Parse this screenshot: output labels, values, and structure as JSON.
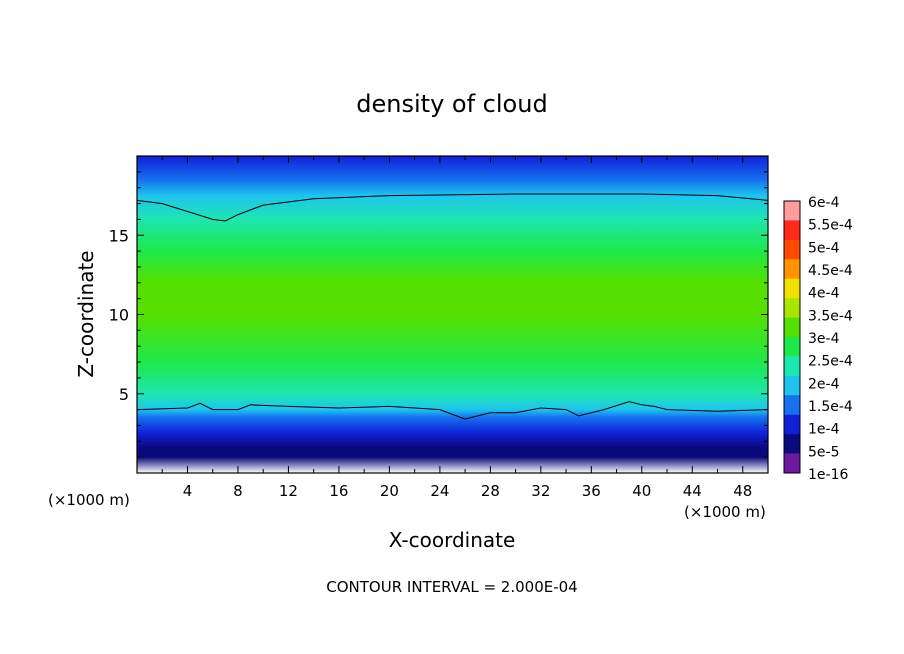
{
  "chart_data": {
    "type": "heatmap",
    "title": "density of cloud",
    "xlabel": "X-coordinate",
    "ylabel": "Z-coordinate",
    "x_unit": "(×1000 m)",
    "x_unit_right": "(×1000 m)",
    "footer": "CONTOUR INTERVAL = 2.000E-04",
    "xlim": [
      0,
      50
    ],
    "ylim": [
      0,
      20
    ],
    "x_ticks": [
      4,
      8,
      12,
      16,
      20,
      24,
      28,
      32,
      36,
      40,
      44,
      48
    ],
    "y_ticks": [
      5,
      10,
      15
    ],
    "colorbar": {
      "labels": [
        "6e-4",
        "5.5e-4",
        "5e-4",
        "4.5e-4",
        "4e-4",
        "3.5e-4",
        "3e-4",
        "2.5e-4",
        "2e-4",
        "1.5e-4",
        "1e-4",
        "5e-5",
        "1e-16"
      ],
      "colors": [
        "#ff9c9c",
        "#ff2a1c",
        "#ff4a00",
        "#ff9400",
        "#f2e000",
        "#a8e600",
        "#56e000",
        "#1ee84a",
        "#1ee6b0",
        "#1ec4ee",
        "#1670f0",
        "#1020d8",
        "#0a0a7c",
        "#6e1aa0"
      ]
    },
    "density_profile": [
      {
        "z": 0.0,
        "v": null
      },
      {
        "z": 1.0,
        "v": 1e-16
      },
      {
        "z": 1.6,
        "v": 3e-05
      },
      {
        "z": 2.5,
        "v": 7e-05
      },
      {
        "z": 3.5,
        "v": 0.00013
      },
      {
        "z": 4.0,
        "v": 0.00016
      },
      {
        "z": 5.0,
        "v": 0.00022
      },
      {
        "z": 7.0,
        "v": 0.00027
      },
      {
        "z": 10.0,
        "v": 0.00031
      },
      {
        "z": 12.0,
        "v": 0.0003
      },
      {
        "z": 14.0,
        "v": 0.00027
      },
      {
        "z": 16.0,
        "v": 0.00023
      },
      {
        "z": 17.5,
        "v": 0.00016
      },
      {
        "z": 18.5,
        "v": 0.00012
      },
      {
        "z": 20.0,
        "v": 8e-05
      }
    ],
    "contour_upper": [
      [
        0,
        17.2
      ],
      [
        2,
        17.0
      ],
      [
        4,
        16.5
      ],
      [
        6,
        16.0
      ],
      [
        7,
        15.9
      ],
      [
        8,
        16.3
      ],
      [
        10,
        16.9
      ],
      [
        14,
        17.3
      ],
      [
        20,
        17.5
      ],
      [
        30,
        17.6
      ],
      [
        40,
        17.6
      ],
      [
        46,
        17.5
      ],
      [
        50,
        17.2
      ]
    ],
    "contour_lower": [
      [
        0,
        4.0
      ],
      [
        4,
        4.1
      ],
      [
        5,
        4.4
      ],
      [
        6,
        4.0
      ],
      [
        8,
        4.0
      ],
      [
        9,
        4.3
      ],
      [
        12,
        4.2
      ],
      [
        16,
        4.1
      ],
      [
        20,
        4.2
      ],
      [
        24,
        4.0
      ],
      [
        26,
        3.4
      ],
      [
        27,
        3.6
      ],
      [
        28,
        3.8
      ],
      [
        30,
        3.8
      ],
      [
        32,
        4.1
      ],
      [
        34,
        4.0
      ],
      [
        35,
        3.6
      ],
      [
        37,
        4.0
      ],
      [
        39,
        4.5
      ],
      [
        40,
        4.3
      ],
      [
        41,
        4.2
      ],
      [
        42,
        4.0
      ],
      [
        46,
        3.9
      ],
      [
        50,
        4.0
      ]
    ],
    "grid": false
  }
}
